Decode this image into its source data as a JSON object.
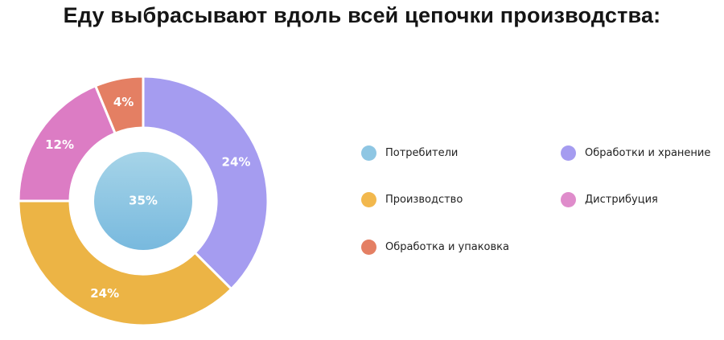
{
  "chart_data": {
    "type": "pie",
    "title": "Еду выбрасывают вдоль всей цепочки производства:",
    "center": {
      "label": "Потребители",
      "value": 35,
      "text": "35%",
      "color": "#8ec6e3"
    },
    "slices": [
      {
        "label": "Обработки и хранение",
        "value": 24,
        "text": "24%",
        "color": "#a59cf0"
      },
      {
        "label": "Производство",
        "value": 24,
        "text": "24%",
        "color": "#ecb445"
      },
      {
        "label": "Дистрибуция",
        "value": 12,
        "text": "12%",
        "color": "#dc7cc4"
      },
      {
        "label": "Обработка и упаковка",
        "value": 4,
        "text": "4%",
        "color": "#e47f63"
      }
    ],
    "legend": [
      {
        "label": "Потребители",
        "color": "#8ec6e3"
      },
      {
        "label": "Обработки и хранение",
        "color": "#a59cf0"
      },
      {
        "label": "Производство",
        "color": "#f2b84d"
      },
      {
        "label": "Дистрибуция",
        "color": "#df8ccb"
      },
      {
        "label": "Обработка и упаковка",
        "color": "#e47f63"
      }
    ],
    "legend_position": "right"
  }
}
